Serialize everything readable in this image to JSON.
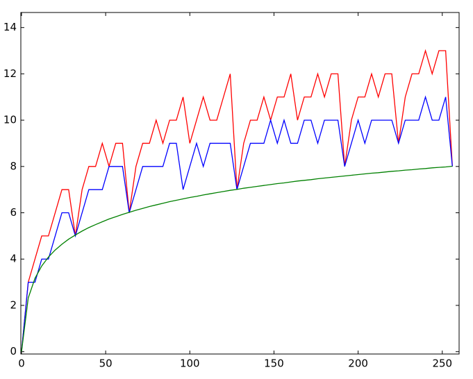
{
  "chart_data": {
    "type": "line",
    "x": [
      0,
      4,
      8,
      12,
      16,
      20,
      24,
      28,
      32,
      36,
      40,
      44,
      48,
      52,
      56,
      60,
      64,
      68,
      72,
      76,
      80,
      84,
      88,
      92,
      96,
      100,
      104,
      108,
      112,
      116,
      120,
      124,
      128,
      132,
      136,
      140,
      144,
      148,
      152,
      156,
      160,
      164,
      168,
      172,
      176,
      180,
      184,
      188,
      192,
      196,
      200,
      204,
      208,
      212,
      216,
      220,
      224,
      228,
      232,
      236,
      240,
      244,
      248,
      252,
      256
    ],
    "series": [
      {
        "color": "#ff0000",
        "values": [
          0,
          3,
          4,
          5,
          5,
          6,
          7,
          7,
          5,
          7,
          8,
          8,
          9,
          8,
          9,
          9,
          6,
          8,
          9,
          9,
          10,
          9,
          10,
          10,
          11,
          9,
          10,
          11,
          10,
          10,
          11,
          12,
          7,
          9,
          10,
          10,
          11,
          10,
          11,
          11,
          12,
          10,
          11,
          11,
          12,
          11,
          12,
          12,
          8,
          10,
          11,
          11,
          12,
          11,
          12,
          12,
          9,
          11,
          12,
          12,
          13,
          12,
          13,
          13,
          8
        ]
      },
      {
        "color": "#0000ff",
        "values": [
          0,
          3,
          3,
          4,
          4,
          5,
          6,
          6,
          5,
          6,
          7,
          7,
          7,
          8,
          8,
          8,
          6,
          7,
          8,
          8,
          8,
          8,
          9,
          9,
          7,
          8,
          9,
          8,
          9,
          9,
          9,
          9,
          7,
          8,
          9,
          9,
          9,
          10,
          9,
          10,
          9,
          9,
          10,
          10,
          9,
          10,
          10,
          10,
          8,
          9,
          10,
          9,
          10,
          10,
          10,
          10,
          9,
          10,
          10,
          10,
          11,
          10,
          10,
          11,
          8
        ]
      },
      {
        "color": "#008000",
        "values": [
          0,
          2.32,
          3.17,
          3.7,
          4.09,
          4.39,
          4.64,
          4.86,
          5.04,
          5.21,
          5.36,
          5.49,
          5.61,
          5.73,
          5.83,
          5.93,
          6.02,
          6.11,
          6.19,
          6.27,
          6.34,
          6.41,
          6.48,
          6.54,
          6.6,
          6.66,
          6.71,
          6.77,
          6.82,
          6.87,
          6.92,
          6.97,
          7.01,
          7.06,
          7.1,
          7.14,
          7.18,
          7.22,
          7.26,
          7.29,
          7.33,
          7.37,
          7.4,
          7.43,
          7.47,
          7.5,
          7.53,
          7.56,
          7.59,
          7.62,
          7.65,
          7.68,
          7.71,
          7.73,
          7.76,
          7.79,
          7.81,
          7.84,
          7.86,
          7.89,
          7.91,
          7.94,
          7.96,
          7.98,
          8.01
        ]
      }
    ],
    "xlim": [
      -0.4,
      260
    ],
    "ylim": [
      -0.1,
      14.65
    ],
    "xticks": [
      0,
      50,
      100,
      150,
      200,
      250
    ],
    "yticks": [
      0,
      2,
      4,
      6,
      8,
      10,
      12,
      14
    ]
  }
}
